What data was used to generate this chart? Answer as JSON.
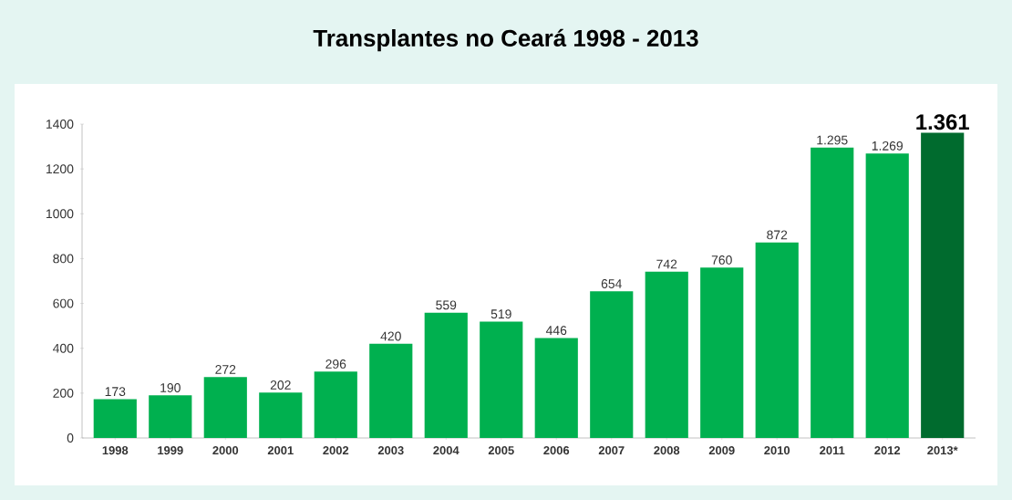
{
  "chart_data": {
    "type": "bar",
    "title": "Transplantes no Ceará 1998 - 2013",
    "categories": [
      "1998",
      "1999",
      "2000",
      "2001",
      "2002",
      "2003",
      "2004",
      "2005",
      "2006",
      "2007",
      "2008",
      "2009",
      "2010",
      "2011",
      "2012",
      "2013*"
    ],
    "values": [
      173,
      190,
      272,
      202,
      296,
      420,
      559,
      519,
      446,
      654,
      742,
      760,
      872,
      1295,
      1269,
      1361
    ],
    "value_labels": [
      "173",
      "190",
      "272",
      "202",
      "296",
      "420",
      "559",
      "519",
      "446",
      "654",
      "742",
      "760",
      "872",
      "1.295",
      "1.269",
      "1.361"
    ],
    "colors": [
      "#00b04f",
      "#00b04f",
      "#00b04f",
      "#00b04f",
      "#00b04f",
      "#00b04f",
      "#00b04f",
      "#00b04f",
      "#00b04f",
      "#00b04f",
      "#00b04f",
      "#00b04f",
      "#00b04f",
      "#00b04f",
      "#00b04f",
      "#006b2e"
    ],
    "ylim": [
      0,
      1400
    ],
    "yticks": [
      0,
      200,
      400,
      600,
      800,
      1000,
      1200,
      1400
    ],
    "grid": false
  }
}
